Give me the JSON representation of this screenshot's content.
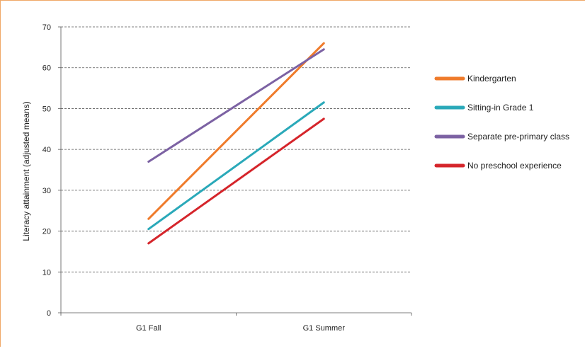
{
  "chart_data": {
    "type": "line",
    "ylabel": "Literacy attainment (adjusted means)",
    "xlabel": "",
    "categories": [
      "G1 Fall",
      "G1 Summer"
    ],
    "ylim": [
      0,
      70
    ],
    "yticks": [
      0,
      10,
      20,
      30,
      40,
      50,
      60,
      70
    ],
    "grid": true,
    "legend_position": "right",
    "series": [
      {
        "name": "Kindergarten",
        "color": "#ef7b2b",
        "values": [
          23,
          66
        ]
      },
      {
        "name": "Sitting-in Grade 1",
        "color": "#2aa9b9",
        "values": [
          20.5,
          51.5
        ]
      },
      {
        "name": "Separate pre-primary class",
        "color": "#7c62a3",
        "values": [
          37,
          64.5
        ]
      },
      {
        "name": "No preschool experience",
        "color": "#d5252b",
        "values": [
          17,
          47.5
        ]
      }
    ]
  }
}
